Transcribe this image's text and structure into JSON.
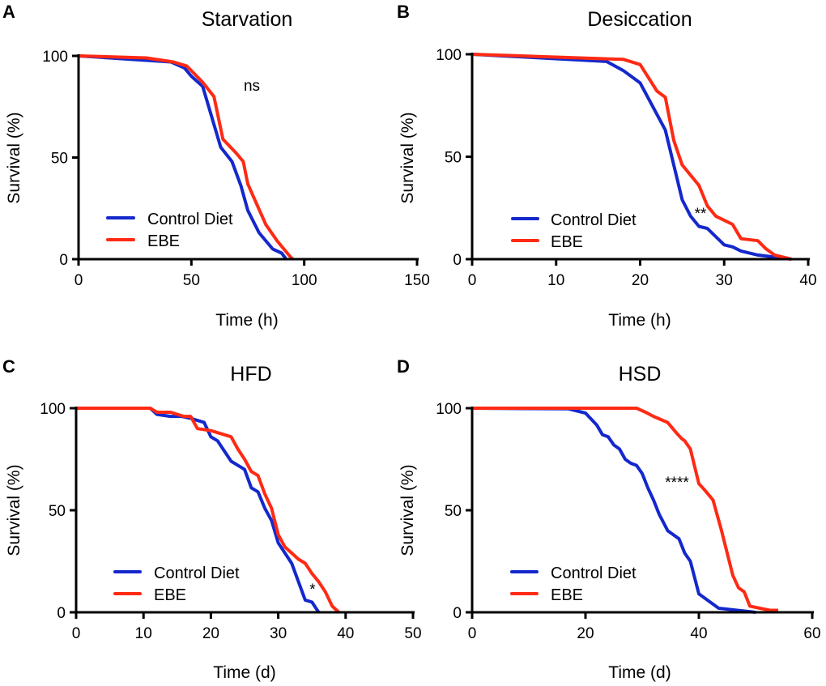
{
  "colors": {
    "control": "#1428cc",
    "ebe": "#ff2a14",
    "axis": "#000000"
  },
  "chart_data": [
    {
      "type": "line",
      "panel": "A",
      "title": "Starvation",
      "xlabel": "Time (h)",
      "ylabel": "Survival (%)",
      "xlim": [
        0,
        150
      ],
      "ylim": [
        0,
        100
      ],
      "xticks": [
        0,
        50,
        100,
        150
      ],
      "yticks": [
        0,
        50,
        100
      ],
      "legend": [
        "Control Diet",
        "EBE"
      ],
      "legend_placement": "bottom-left",
      "annotation": "ns",
      "series": [
        {
          "name": "Control Diet",
          "x": [
            0,
            41,
            47,
            50,
            55,
            63,
            68,
            72,
            75,
            80,
            86,
            90,
            92
          ],
          "y": [
            100,
            97,
            94,
            90,
            85,
            55,
            48,
            36,
            24,
            13,
            5,
            3,
            0
          ]
        },
        {
          "name": "EBE",
          "x": [
            0,
            30,
            42,
            48,
            55,
            60,
            64,
            70,
            73,
            75,
            79,
            83,
            88,
            94,
            95
          ],
          "y": [
            100,
            99,
            97,
            95,
            87,
            80,
            59,
            52,
            48,
            37,
            27,
            17,
            9,
            1,
            0
          ]
        }
      ]
    },
    {
      "type": "line",
      "panel": "B",
      "title": "Desiccation",
      "xlabel": "Time (h)",
      "ylabel": "Survival (%)",
      "xlim": [
        0,
        40
      ],
      "ylim": [
        0,
        100
      ],
      "xticks": [
        0,
        10,
        20,
        30,
        40
      ],
      "yticks": [
        0,
        50,
        100
      ],
      "legend": [
        "Control Diet",
        "EBE"
      ],
      "legend_placement": "bottom-left",
      "annotation": "**",
      "series": [
        {
          "name": "Control Diet",
          "x": [
            0,
            16,
            18,
            20,
            23,
            25,
            26,
            27,
            28,
            30,
            31,
            32,
            34,
            38
          ],
          "y": [
            100,
            96.5,
            92,
            86,
            63,
            29,
            21,
            16,
            15,
            7,
            6,
            4,
            2,
            0
          ]
        },
        {
          "name": "EBE",
          "x": [
            0,
            18,
            20,
            22,
            23,
            24,
            25,
            27,
            28,
            29,
            31,
            32,
            34,
            35,
            36,
            38
          ],
          "y": [
            100,
            97.5,
            95,
            82,
            79,
            58,
            46,
            36,
            26,
            21,
            17,
            10,
            9,
            5,
            2,
            0
          ]
        }
      ]
    },
    {
      "type": "line",
      "panel": "C",
      "title": "HFD",
      "xlabel": "Time (d)",
      "ylabel": "Survival (%)",
      "xlim": [
        0,
        50
      ],
      "ylim": [
        0,
        100
      ],
      "xticks": [
        0,
        10,
        20,
        30,
        40,
        50
      ],
      "yticks": [
        0,
        50,
        100
      ],
      "legend": [
        "Control Diet",
        "EBE"
      ],
      "legend_placement": "bottom-left",
      "annotation": "*",
      "series": [
        {
          "name": "Control Diet",
          "x": [
            0,
            11,
            12,
            14,
            15.6,
            17,
            19,
            20,
            21,
            23,
            25,
            26,
            27,
            28,
            29,
            30,
            32,
            34,
            35,
            36
          ],
          "y": [
            100,
            100,
            97,
            96,
            96,
            95,
            93,
            86,
            84,
            74,
            70,
            61,
            59,
            51,
            45,
            34,
            24,
            6,
            5,
            0
          ]
        },
        {
          "name": "EBE",
          "x": [
            0,
            11,
            12,
            14,
            16,
            17,
            18,
            20,
            23,
            24,
            25,
            26,
            27,
            28,
            29,
            30,
            31,
            33,
            34,
            35,
            36,
            37,
            38,
            39
          ],
          "y": [
            100,
            100,
            98,
            98,
            96,
            96,
            90,
            89,
            86,
            80,
            75,
            69,
            67,
            58,
            51,
            38,
            32,
            26,
            24,
            19,
            15,
            10,
            3,
            0
          ]
        }
      ]
    },
    {
      "type": "line",
      "panel": "D",
      "title": "HSD",
      "xlabel": "Time (d)",
      "ylabel": "Survival (%)",
      "xlim": [
        0,
        60
      ],
      "ylim": [
        0,
        100
      ],
      "xticks": [
        0,
        20,
        40,
        60
      ],
      "yticks": [
        0,
        50,
        100
      ],
      "legend": [
        "Control Diet",
        "EBE"
      ],
      "legend_placement": "bottom-left",
      "annotation": "****",
      "series": [
        {
          "name": "Control Diet",
          "x": [
            0,
            17,
            20,
            22,
            23,
            24,
            25,
            26,
            27,
            28,
            29,
            30,
            31,
            32,
            33,
            34.5,
            36.5,
            37.5,
            38.5,
            40,
            43.5,
            50
          ],
          "y": [
            100,
            99.7,
            97.6,
            91.7,
            87,
            86,
            82,
            80,
            75,
            73,
            72,
            68,
            61,
            55,
            48,
            40,
            36,
            29,
            25,
            9,
            2,
            0
          ]
        },
        {
          "name": "EBE",
          "x": [
            0,
            29,
            30.6,
            32,
            34.5,
            36,
            37,
            37.5,
            38.5,
            40,
            41,
            42.5,
            44,
            46,
            47,
            48,
            49,
            52.5,
            54
          ],
          "y": [
            100,
            100,
            98,
            96,
            93,
            88,
            85,
            84,
            80,
            63,
            60,
            55,
            40,
            18,
            12,
            10,
            3,
            1,
            1
          ]
        }
      ]
    }
  ]
}
